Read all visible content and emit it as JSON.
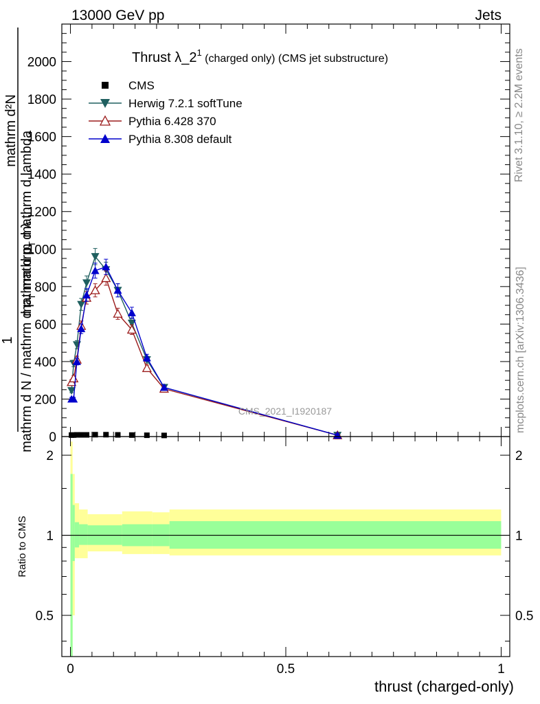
{
  "header": {
    "left": "13000 GeV pp",
    "right": "Jets"
  },
  "side_labels": {
    "rivet": "Rivet 3.1.10, ≥ 2.2M events",
    "mcplots": "mcplots.cern.ch [arXiv:1306.3436]"
  },
  "watermark": "CMS_2021_I1920187",
  "chart_data": [
    {
      "type": "line",
      "title_main": "Thrust λ_2",
      "title_sup": "1",
      "title_rest": " (charged only) (CMS jet substructure)",
      "ylabel_num": "1",
      "ylabel_line1": "mathrm d N / mathrm d p",
      "ylabel_line1_sub": "T",
      "ylabel_line1_rest": " mathrm d λ",
      "ylabel_line2": "mathrm d²N",
      "ylabel_line3": "mathrm d p",
      "ylabel_line3_sub": "T",
      "ylabel_line3_rest": " mathrm d lambda",
      "xlim": [
        -0.02,
        1.02
      ],
      "ylim": [
        0,
        2200
      ],
      "yticks": [
        0,
        200,
        400,
        600,
        800,
        1000,
        1200,
        1400,
        1600,
        1800,
        2000
      ],
      "ytick_labels": [
        "0",
        "200",
        "400",
        "600",
        "800",
        "1000",
        "1200",
        "1400",
        "1600",
        "1800",
        "2000"
      ],
      "legend_position": "top-left",
      "bins": [
        0.0,
        0.005,
        0.01,
        0.02,
        0.03,
        0.045,
        0.07,
        0.095,
        0.125,
        0.16,
        0.195,
        0.24,
        1.0
      ],
      "series": [
        {
          "name": "CMS",
          "color": "#000000",
          "marker": "square",
          "x": [
            0.0025,
            0.0075,
            0.015,
            0.025,
            0.0375,
            0.0575,
            0.0825,
            0.11,
            0.1425,
            0.1775,
            0.2175,
            0.62
          ],
          "y": [
            8,
            8,
            9,
            9,
            9,
            10,
            10,
            9,
            8,
            7,
            6,
            1
          ]
        },
        {
          "name": "Herwig 7.2.1 softTune",
          "color": "#1f5f5f",
          "marker": "triangle-down",
          "x": [
            0.0025,
            0.0075,
            0.015,
            0.025,
            0.0375,
            0.0575,
            0.0825,
            0.11,
            0.1425,
            0.1775,
            0.2175,
            0.62
          ],
          "y": [
            245,
            390,
            490,
            705,
            820,
            960,
            890,
            780,
            605,
            410,
            262,
            7
          ]
        },
        {
          "name": "Pythia 6.428 370",
          "color": "#9b1b1b",
          "marker": "triangle-open",
          "x": [
            0.0025,
            0.0075,
            0.015,
            0.025,
            0.0375,
            0.0575,
            0.0825,
            0.11,
            0.1425,
            0.1775,
            0.2175,
            0.62
          ],
          "y": [
            290,
            310,
            410,
            590,
            740,
            780,
            845,
            655,
            570,
            365,
            255,
            7
          ]
        },
        {
          "name": "Pythia 8.308 default",
          "color": "#0000cc",
          "marker": "triangle-up",
          "x": [
            0.0025,
            0.0075,
            0.015,
            0.025,
            0.0375,
            0.0575,
            0.0825,
            0.11,
            0.1425,
            0.1775,
            0.2175,
            0.62
          ],
          "y": [
            200,
            200,
            400,
            575,
            755,
            885,
            905,
            780,
            660,
            420,
            262,
            7
          ]
        }
      ]
    },
    {
      "type": "area",
      "ylabel": "Ratio to CMS",
      "xlabel": "thrust (charged-only)",
      "xlim": [
        -0.02,
        1.02
      ],
      "ylim": [
        0.35,
        2.35
      ],
      "log_y": true,
      "yticks": [
        0.5,
        1,
        2
      ],
      "ytick_labels": [
        "0.5",
        "1",
        "2"
      ],
      "xticks": [
        0,
        0.5,
        1
      ],
      "xtick_labels": [
        "0",
        "0.5",
        "1"
      ],
      "reference_line": 1,
      "bands": [
        {
          "name": "total uncertainty",
          "color": "#ffff99",
          "edges": [
            0.0,
            0.005,
            0.01,
            0.02,
            0.04,
            0.12,
            0.19,
            0.23,
            1.0
          ],
          "lo": [
            0.35,
            0.5,
            0.82,
            0.82,
            0.87,
            0.85,
            0.85,
            0.84
          ],
          "hi": [
            2.25,
            1.7,
            1.32,
            1.25,
            1.2,
            1.23,
            1.22,
            1.25
          ]
        },
        {
          "name": "statistical uncertainty",
          "color": "#99ff99",
          "edges": [
            0.0,
            0.005,
            0.01,
            0.02,
            0.04,
            0.12,
            0.19,
            0.23,
            1.0
          ],
          "lo": [
            0.35,
            0.8,
            0.9,
            0.92,
            0.92,
            0.91,
            0.91,
            0.89
          ],
          "hi": [
            1.7,
            1.3,
            1.12,
            1.1,
            1.09,
            1.1,
            1.1,
            1.13
          ]
        }
      ]
    }
  ]
}
